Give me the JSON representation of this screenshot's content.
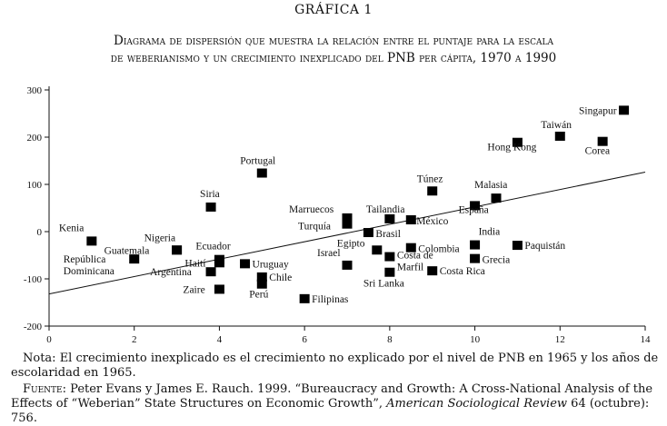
{
  "figure": {
    "label": "GRÁFICA 1",
    "title_line1": "Diagrama de dispersión que muestra la relación entre el puntaje para la escala",
    "title_line2": "de weberianismo y un crecimiento inexplicado del PNB per cápita, 1970 a 1990"
  },
  "chart_data": {
    "type": "scatter",
    "title": "Diagrama de dispersión que muestra la relación entre el puntaje para la escala de weberianismo y un crecimiento inexplicado del PNB per cápita, 1970 a 1990",
    "xlabel": "",
    "ylabel": "",
    "xlim": [
      0,
      14
    ],
    "ylim": [
      -200,
      300
    ],
    "xticks": [
      0,
      2,
      4,
      6,
      8,
      10,
      12,
      14
    ],
    "yticks": [
      -200,
      -100,
      0,
      100,
      200,
      300
    ],
    "xtick_labels": [
      "0",
      "2",
      "4",
      "6",
      "8",
      "10",
      "12",
      "14"
    ],
    "ytick_labels": [
      "-200",
      "-100",
      "0",
      "100",
      "200",
      "300"
    ],
    "grid": false,
    "trend_line": {
      "x": [
        0,
        14
      ],
      "y": [
        -132,
        126
      ]
    },
    "points": [
      {
        "name": "Singapur",
        "x": 13.5,
        "y": 257
      },
      {
        "name": "Taiwán",
        "x": 12.0,
        "y": 202
      },
      {
        "name": "Hong Kong",
        "x": 11.0,
        "y": 189
      },
      {
        "name": "Corea",
        "x": 13.0,
        "y": 191
      },
      {
        "name": "Portugal",
        "x": 5.0,
        "y": 124
      },
      {
        "name": "Túnez",
        "x": 9.0,
        "y": 86
      },
      {
        "name": "Malasia",
        "x": 10.5,
        "y": 71
      },
      {
        "name": "España",
        "x": 10.0,
        "y": 55
      },
      {
        "name": "Siria",
        "x": 3.8,
        "y": 52
      },
      {
        "name": "Marruecos",
        "x": 7.0,
        "y": 29
      },
      {
        "name": "Tailandia",
        "x": 8.0,
        "y": 27
      },
      {
        "name": "México",
        "x": 8.5,
        "y": 25
      },
      {
        "name": "Turquía",
        "x": 7.0,
        "y": 16
      },
      {
        "name": "Brasil",
        "x": 7.5,
        "y": -2
      },
      {
        "name": "Kenia",
        "x": 1.0,
        "y": -20
      },
      {
        "name": "India",
        "x": 10.0,
        "y": -28
      },
      {
        "name": "Paquistán",
        "x": 11.0,
        "y": -29
      },
      {
        "name": "Colombia",
        "x": 8.5,
        "y": -34
      },
      {
        "name": "Egipto",
        "x": 7.7,
        "y": -39
      },
      {
        "name": "Nigeria",
        "x": 3.0,
        "y": -39
      },
      {
        "name": "Guatemala",
        "x": 3.0,
        "y": -39
      },
      {
        "name": "Costa de Marfil",
        "x": 8.0,
        "y": -53
      },
      {
        "name": "Grecia",
        "x": 10.0,
        "y": -57
      },
      {
        "name": "Ecuador",
        "x": 4.0,
        "y": -59
      },
      {
        "name": "República Dominicana",
        "x": 2.0,
        "y": -58
      },
      {
        "name": "Haití",
        "x": 4.0,
        "y": -66
      },
      {
        "name": "Uruguay",
        "x": 4.6,
        "y": -68
      },
      {
        "name": "Israel",
        "x": 7.0,
        "y": -71
      },
      {
        "name": "Argentina",
        "x": 3.8,
        "y": -85
      },
      {
        "name": "Costa Rica",
        "x": 9.0,
        "y": -83
      },
      {
        "name": "Sri Lanka",
        "x": 8.0,
        "y": -86
      },
      {
        "name": "Chile",
        "x": 5.0,
        "y": -96
      },
      {
        "name": "Perú",
        "x": 5.0,
        "y": -111
      },
      {
        "name": "Zaire",
        "x": 4.0,
        "y": -122
      },
      {
        "name": "Filipinas",
        "x": 6.0,
        "y": -142
      }
    ],
    "point_labels": [
      "Singapur",
      "Taiwán",
      "Hong Kong",
      "Corea",
      "Portugal",
      "Túnez",
      "Malasia",
      "España",
      "Siria",
      "Marruecos",
      "Tailandia",
      "México",
      "Turquía",
      "Brasil",
      "Kenia",
      "India",
      "Paquistán",
      "Colombia",
      "Egipto",
      "Nigeria",
      "Guatemala",
      "Costa de",
      "Marfil",
      "Grecia",
      "Ecuador",
      "República",
      "Dominicana",
      "Haití",
      "Uruguay",
      "Israel",
      "Argentina",
      "Costa Rica",
      "Sri Lanka",
      "Chile",
      "Perú",
      "Zaire",
      "Filipinas"
    ]
  },
  "notes": {
    "note_text": "Nota: El crecimiento inexplicado es el crecimiento no explicado por el nivel de PNB en 1965 y los años de escolaridad en 1965.",
    "source_label": "Fuente:",
    "source_text": "Peter Evans y James E. Rauch. 1999. “Bureaucracy and Growth: A Cross-National Analysis of the Effects of “Weberian” State Structures on Economic Growth”,",
    "journal": "American Sociological Review",
    "citation_end": "64 (octubre): 756."
  }
}
